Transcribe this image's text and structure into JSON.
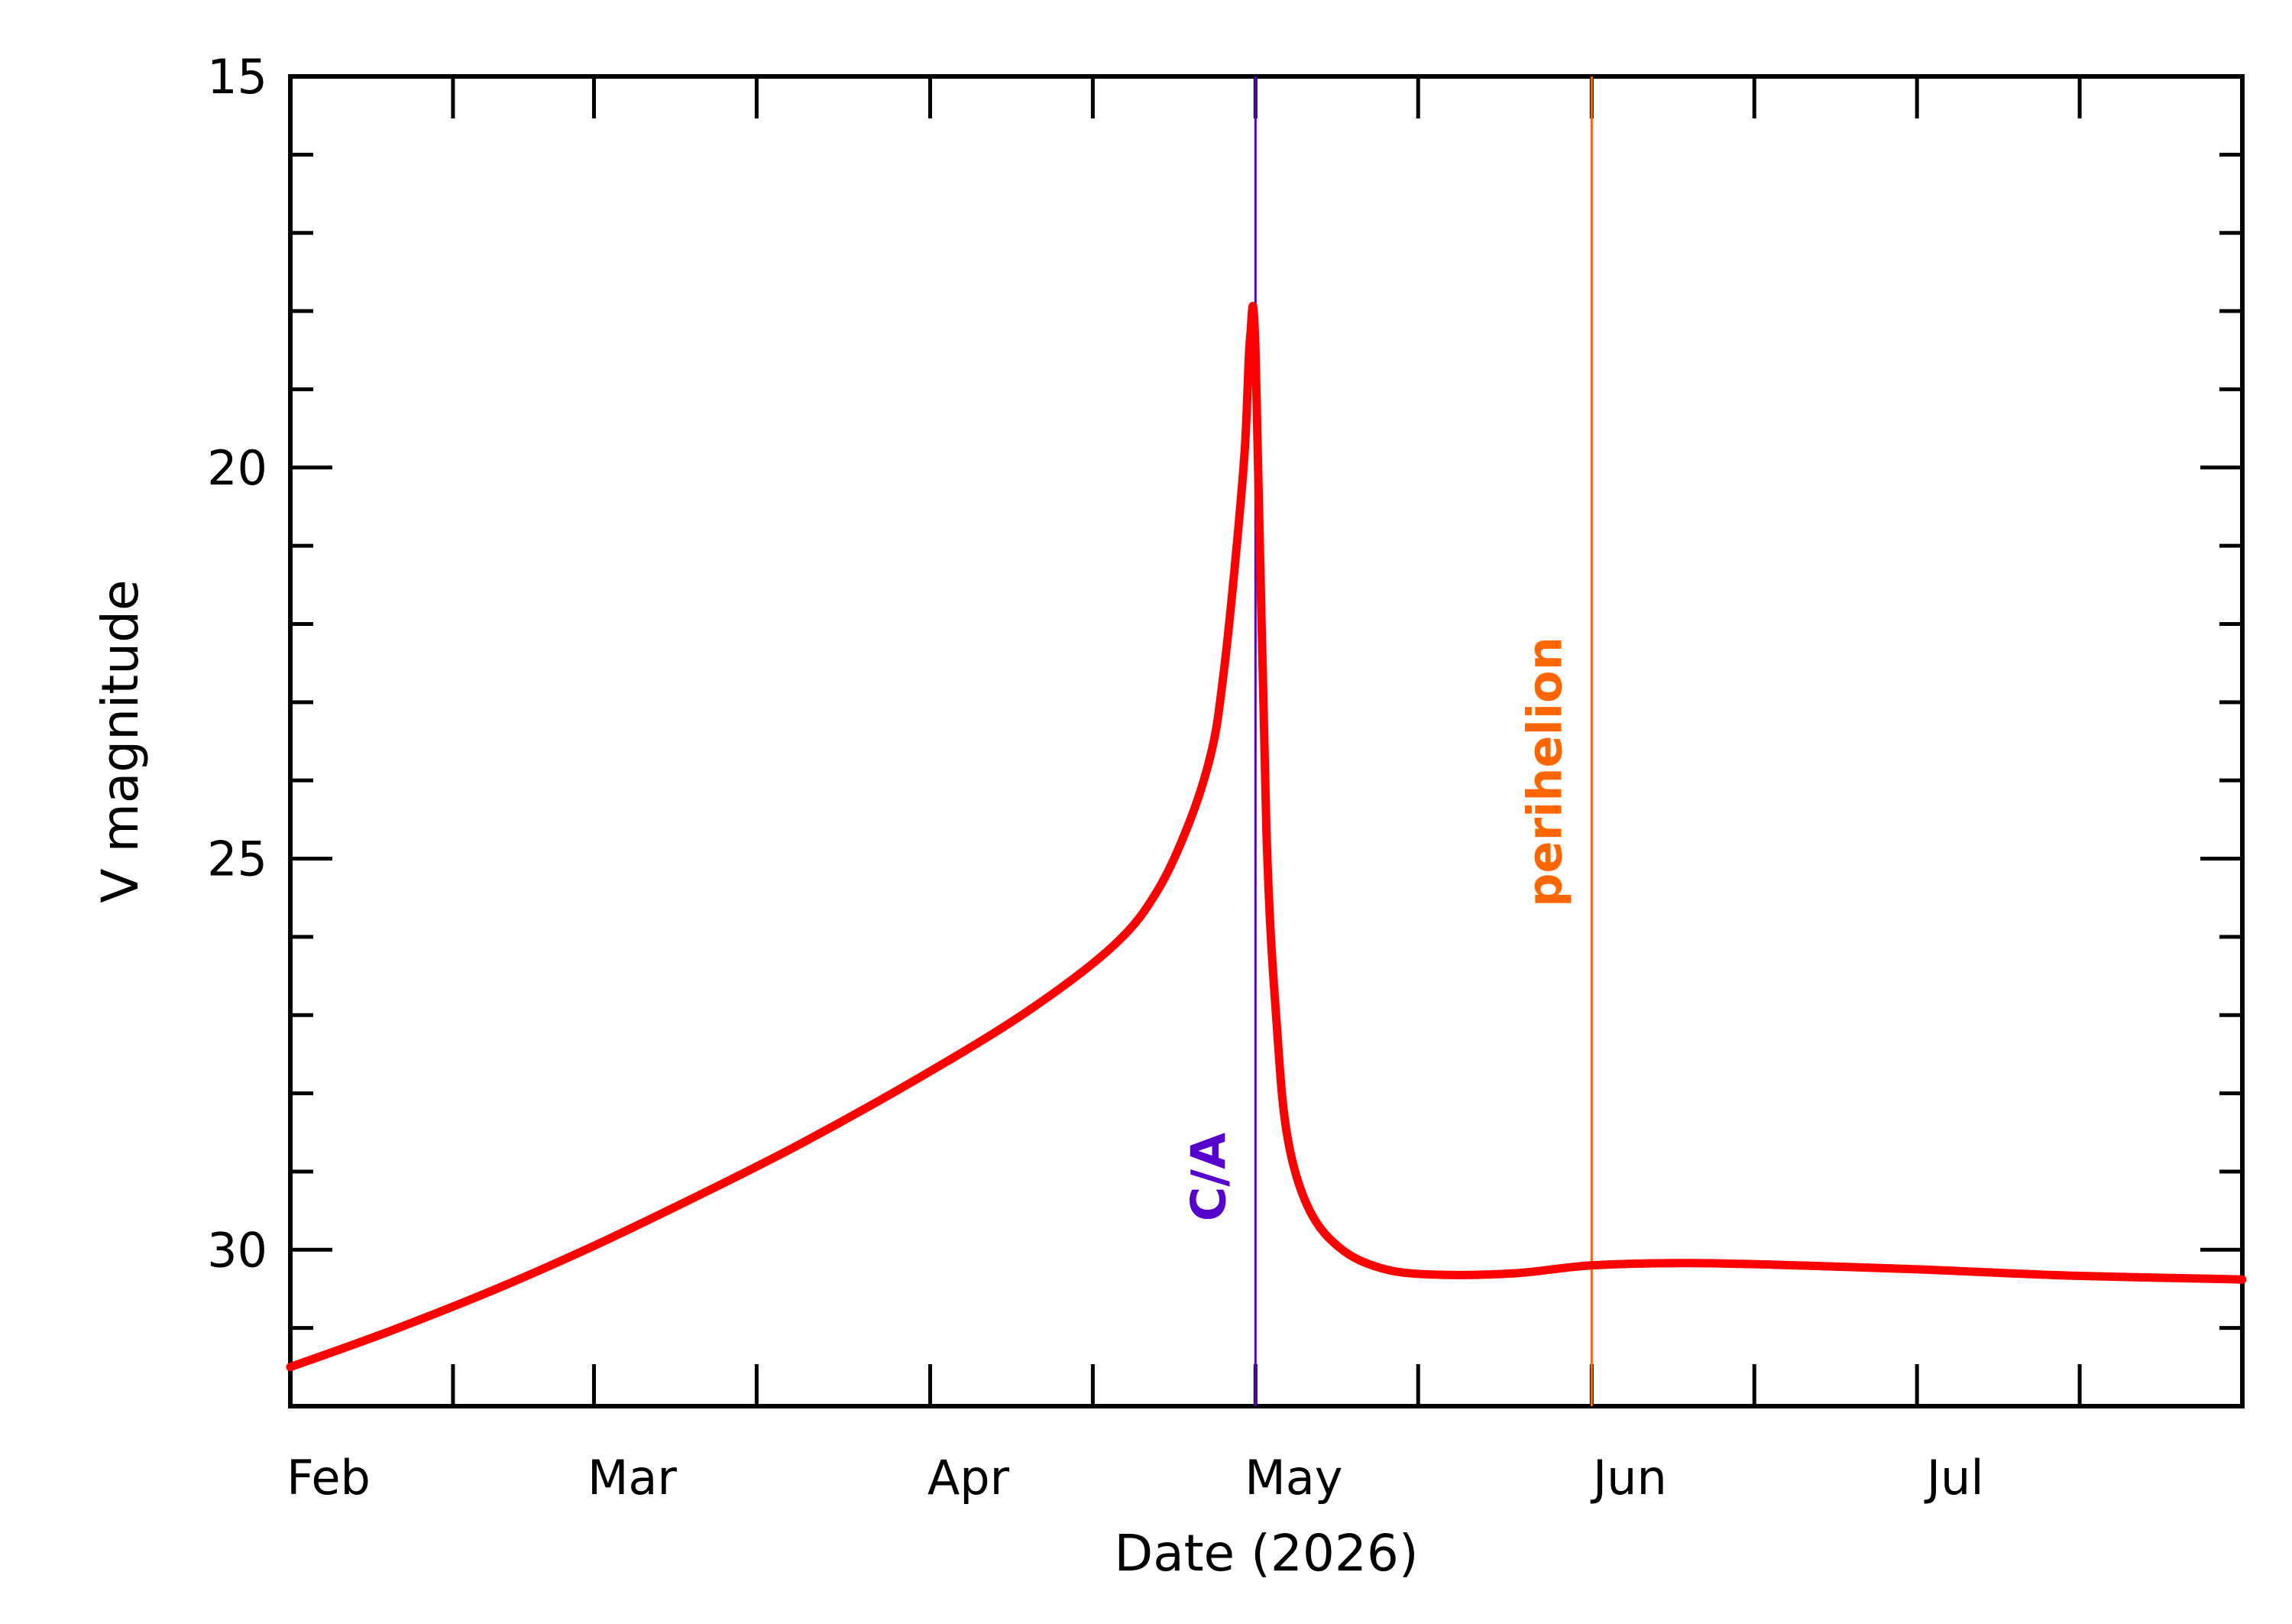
{
  "chart_data": {
    "type": "line",
    "title": "",
    "xlabel": "Date (2026)",
    "ylabel": "V magnitude",
    "ylim": [
      15,
      32
    ],
    "y_inverted": true,
    "y_ticks": [
      15,
      20,
      25,
      30
    ],
    "x_ticks": [
      {
        "date": "2026-02-01",
        "label": "Feb"
      },
      {
        "date": "2026-03-01",
        "label": "Mar"
      },
      {
        "date": "2026-04-01",
        "label": "Apr"
      },
      {
        "date": "2026-05-01",
        "label": "May"
      },
      {
        "date": "2026-06-01",
        "label": "Jun"
      },
      {
        "date": "2026-07-01",
        "label": "Jul"
      }
    ],
    "xlim": [
      "2026-02-01",
      "2026-07-31"
    ],
    "grid": false,
    "series": [
      {
        "color": "#ff0000",
        "points": [
          [
            "2026-02-01",
            31.5
          ],
          [
            "2026-02-10",
            31.05
          ],
          [
            "2026-02-20",
            30.5
          ],
          [
            "2026-03-01",
            29.95
          ],
          [
            "2026-03-10",
            29.35
          ],
          [
            "2026-03-20",
            28.65
          ],
          [
            "2026-03-31",
            27.8
          ],
          [
            "2026-04-10",
            26.95
          ],
          [
            "2026-04-18",
            26.1
          ],
          [
            "2026-04-22",
            25.4
          ],
          [
            "2026-04-25",
            24.5
          ],
          [
            "2026-04-27",
            23.6
          ],
          [
            "2026-04-28",
            22.7
          ],
          [
            "2026-04-29",
            21.4
          ],
          [
            "2026-04-30",
            19.8
          ],
          [
            "2026-04-30T12:00",
            18.35
          ],
          [
            "2026-05-01",
            18.5
          ],
          [
            "2026-05-02",
            24.6
          ],
          [
            "2026-05-03",
            27.2
          ],
          [
            "2026-05-04",
            28.6
          ],
          [
            "2026-05-06",
            29.5
          ],
          [
            "2026-05-09",
            30.0
          ],
          [
            "2026-05-13",
            30.25
          ],
          [
            "2026-05-18",
            30.32
          ],
          [
            "2026-05-25",
            30.3
          ],
          [
            "2026-06-01",
            30.2
          ],
          [
            "2026-06-10",
            30.17
          ],
          [
            "2026-06-20",
            30.2
          ],
          [
            "2026-07-01",
            30.25
          ],
          [
            "2026-07-15",
            30.33
          ],
          [
            "2026-07-31",
            30.38
          ]
        ]
      }
    ],
    "annotations": [
      {
        "label": "C/A",
        "date": "2026-05-01",
        "color": "#5500cc"
      },
      {
        "label": "perihelion",
        "date": "2026-06-01",
        "color": "#ff6600"
      }
    ]
  }
}
